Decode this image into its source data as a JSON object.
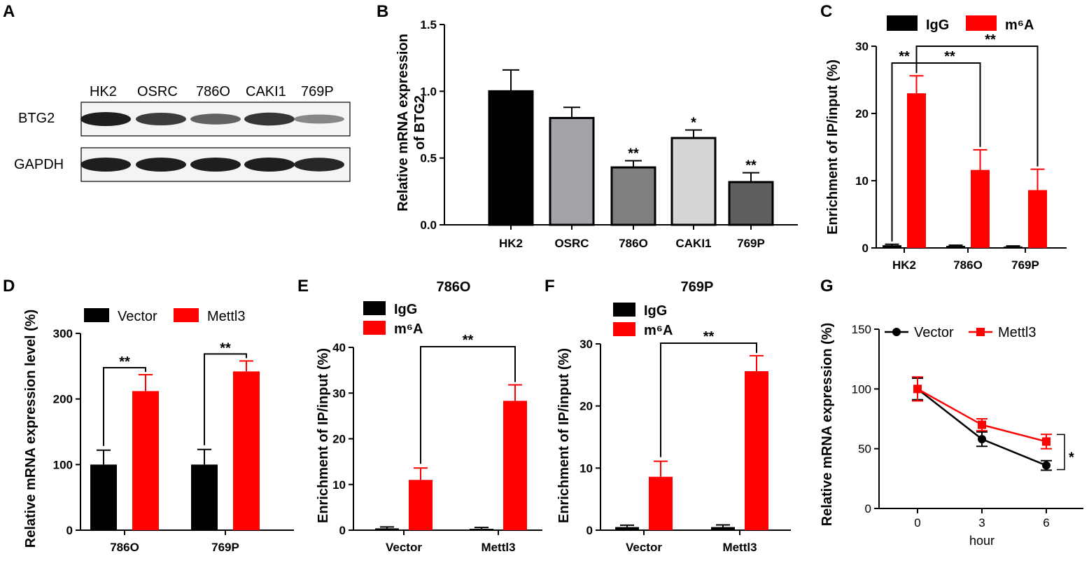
{
  "panel_labels": [
    "A",
    "B",
    "C",
    "D",
    "E",
    "F",
    "G"
  ],
  "colors": {
    "black": "#000000",
    "red": "#ff0000",
    "osrc": "#a3a3a8",
    "o786": "#7f7f7f",
    "caki1": "#d6d6d6",
    "p769": "#5f5f5f"
  },
  "chart_data": [
    {
      "panel": "A",
      "type": "blot",
      "lanes": [
        "HK2",
        "OSRC",
        "786O",
        "CAKI1",
        "769P"
      ],
      "rows": [
        {
          "label": "BTG2",
          "intensity": [
            1.0,
            0.8,
            0.55,
            0.85,
            0.3
          ]
        },
        {
          "label": "GAPDH",
          "intensity": [
            1.0,
            1.0,
            1.0,
            1.0,
            0.95
          ]
        }
      ]
    },
    {
      "panel": "B",
      "type": "bar",
      "ylabel_line1": "Relative mRNA  expression",
      "ylabel_line2": "of BTG2",
      "ylim": [
        0,
        1.5
      ],
      "yticks": [
        "0.0",
        "0.5",
        "1.0",
        "1.5"
      ],
      "categories": [
        "HK2",
        "OSRC",
        "786O",
        "CAKI1",
        "769P"
      ],
      "values": [
        1.0,
        0.8,
        0.43,
        0.65,
        0.32
      ],
      "errors": [
        0.16,
        0.08,
        0.05,
        0.06,
        0.07
      ],
      "stars": [
        "",
        "",
        "**",
        "*",
        "**"
      ]
    },
    {
      "panel": "C",
      "type": "bar",
      "ylabel": "Enrichment of IP/input (%)",
      "ylim": [
        0,
        30
      ],
      "yticks": [
        "0",
        "10",
        "20",
        "30"
      ],
      "categories": [
        "HK2",
        "786O",
        "769P"
      ],
      "series": [
        {
          "name": "IgG",
          "values": [
            0.4,
            0.3,
            0.2
          ],
          "errors": [
            0.15,
            0.1,
            0.1
          ]
        },
        {
          "name": "m⁶A",
          "values": [
            23,
            11.6,
            8.6
          ],
          "errors": [
            2.6,
            3.0,
            3.1
          ]
        }
      ],
      "brackets": [
        "**",
        "**",
        "**"
      ]
    },
    {
      "panel": "D",
      "type": "bar",
      "ylabel": "Relative mRNA  expression level (%)",
      "ylim": [
        0,
        300
      ],
      "yticks": [
        "0",
        "100",
        "200",
        "300"
      ],
      "categories": [
        "786O",
        "769P"
      ],
      "series": [
        {
          "name": "Vector",
          "values": [
            100,
            100
          ],
          "errors": [
            22,
            23
          ]
        },
        {
          "name": "Mettl3",
          "values": [
            212,
            242
          ],
          "errors": [
            25,
            16
          ]
        }
      ],
      "brackets": [
        "**",
        "**"
      ]
    },
    {
      "panel": "E",
      "type": "bar",
      "title": "786O",
      "ylabel": "Enrichment of IP/input (%)",
      "ylim": [
        0,
        40
      ],
      "yticks": [
        "0",
        "10",
        "20",
        "30",
        "40"
      ],
      "categories": [
        "Vector",
        "Mettl3"
      ],
      "series": [
        {
          "name": "IgG",
          "values": [
            0.4,
            0.3
          ],
          "errors": [
            0.3,
            0.3
          ]
        },
        {
          "name": "m⁶A",
          "values": [
            11,
            28.3
          ],
          "errors": [
            2.6,
            3.5
          ]
        }
      ],
      "brackets": [
        "**"
      ]
    },
    {
      "panel": "F",
      "type": "bar",
      "title": "769P",
      "ylabel": "Enrichment of IP/input (%)",
      "ylim": [
        0,
        30
      ],
      "yticks": [
        "0",
        "10",
        "20",
        "30"
      ],
      "categories": [
        "Vector",
        "Mettl3"
      ],
      "series": [
        {
          "name": "IgG",
          "values": [
            0.5,
            0.5
          ],
          "errors": [
            0.3,
            0.35
          ]
        },
        {
          "name": "m⁶A",
          "values": [
            8.6,
            25.6
          ],
          "errors": [
            2.5,
            2.5
          ]
        }
      ],
      "brackets": [
        "**"
      ]
    },
    {
      "panel": "G",
      "type": "line",
      "xlabel": "hour",
      "ylabel": "Relative mRNA  expression (%)",
      "ylim": [
        0,
        150
      ],
      "yticks": [
        "0",
        "50",
        "100",
        "150"
      ],
      "x": [
        0,
        3,
        6
      ],
      "xticks": [
        "0",
        "3",
        "6"
      ],
      "series": [
        {
          "name": "Vector",
          "values": [
            100,
            58,
            36
          ],
          "errors": [
            9,
            6,
            4
          ]
        },
        {
          "name": "Mettl3",
          "values": [
            100,
            70,
            56
          ],
          "errors": [
            10,
            5,
            6
          ]
        }
      ],
      "sig": "*"
    }
  ]
}
